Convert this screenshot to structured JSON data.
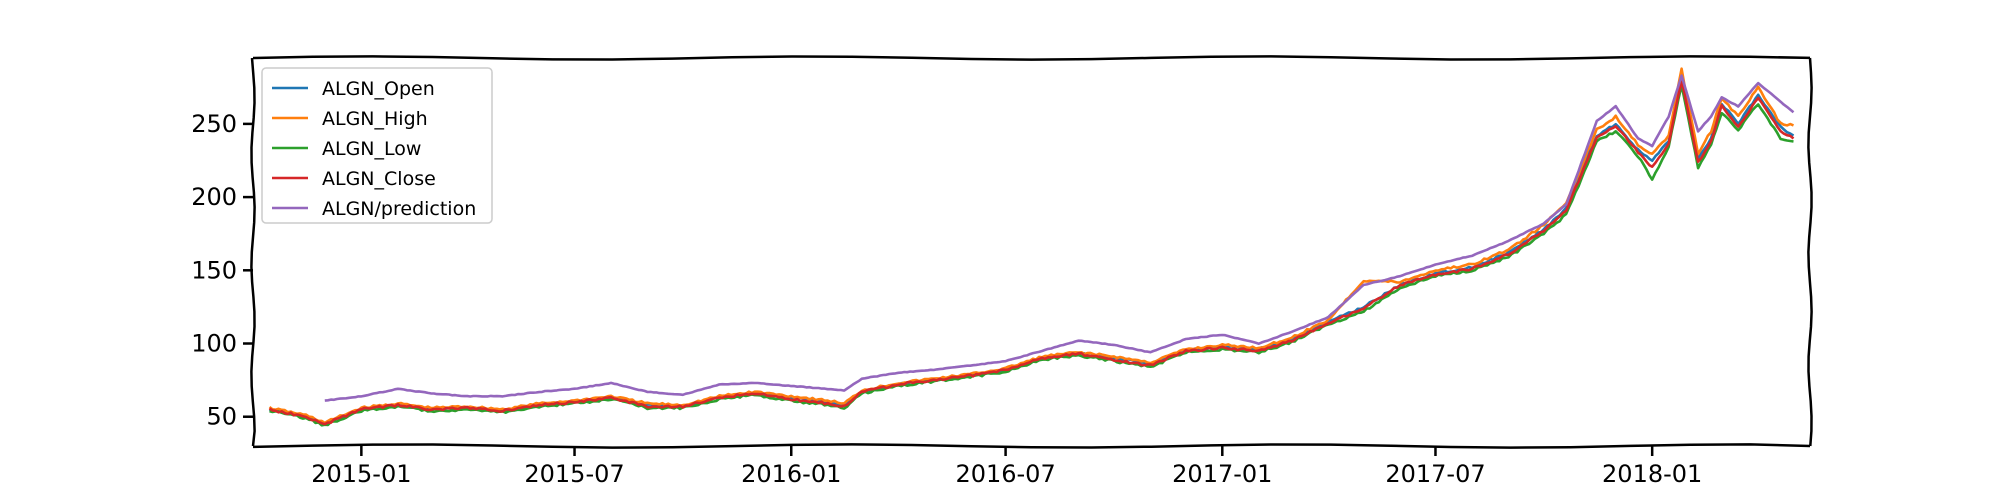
{
  "chart_data": {
    "type": "line",
    "title": "",
    "xlabel": "",
    "ylabel": "",
    "style": "hand-drawn (xkcd)",
    "grid": false,
    "legend": "top-left",
    "xlim": [
      "2014-10-01",
      "2018-05-15"
    ],
    "ylim": [
      30,
      295
    ],
    "x_ticks": [
      "2015-01",
      "2015-07",
      "2016-01",
      "2016-07",
      "2017-01",
      "2017-07",
      "2018-01"
    ],
    "y_ticks": [
      50,
      100,
      150,
      200,
      250
    ],
    "series": [
      {
        "name": "ALGN_Open",
        "color": "#1f77b4",
        "x": [
          "2014-10-15",
          "2014-11-15",
          "2014-12-01",
          "2015-01-01",
          "2015-02-01",
          "2015-03-01",
          "2015-04-01",
          "2015-05-01",
          "2015-06-01",
          "2015-07-01",
          "2015-08-01",
          "2015-09-01",
          "2015-10-01",
          "2015-11-01",
          "2015-12-01",
          "2016-01-01",
          "2016-02-01",
          "2016-02-15",
          "2016-03-01",
          "2016-04-01",
          "2016-05-01",
          "2016-06-01",
          "2016-07-01",
          "2016-08-01",
          "2016-09-01",
          "2016-10-01",
          "2016-11-01",
          "2016-12-01",
          "2017-01-01",
          "2017-02-01",
          "2017-03-01",
          "2017-04-01",
          "2017-05-01",
          "2017-06-01",
          "2017-07-01",
          "2017-08-01",
          "2017-09-01",
          "2017-10-01",
          "2017-10-20",
          "2017-11-15",
          "2017-12-01",
          "2017-12-20",
          "2018-01-01",
          "2018-01-15",
          "2018-01-26",
          "2018-02-09",
          "2018-02-20",
          "2018-03-01",
          "2018-03-15",
          "2018-04-01",
          "2018-04-20",
          "2018-05-01"
        ],
        "values": [
          55,
          50,
          45,
          55,
          58,
          55,
          56,
          54,
          58,
          60,
          63,
          58,
          57,
          63,
          66,
          63,
          60,
          58,
          67,
          72,
          75,
          78,
          82,
          90,
          93,
          90,
          86,
          95,
          98,
          96,
          103,
          115,
          125,
          140,
          148,
          152,
          162,
          178,
          192,
          242,
          250,
          232,
          225,
          238,
          282,
          226,
          240,
          264,
          250,
          270,
          248,
          242
        ]
      },
      {
        "name": "ALGN_High",
        "color": "#ff7f0e",
        "x": [
          "2014-10-15",
          "2014-11-15",
          "2014-12-01",
          "2015-01-01",
          "2015-02-01",
          "2015-03-01",
          "2015-04-01",
          "2015-05-01",
          "2015-06-01",
          "2015-07-01",
          "2015-08-01",
          "2015-09-01",
          "2015-10-01",
          "2015-11-01",
          "2015-12-01",
          "2016-01-01",
          "2016-02-01",
          "2016-02-15",
          "2016-03-01",
          "2016-04-01",
          "2016-05-01",
          "2016-06-01",
          "2016-07-01",
          "2016-08-01",
          "2016-09-01",
          "2016-10-01",
          "2016-11-01",
          "2016-12-01",
          "2017-01-01",
          "2017-02-01",
          "2017-03-01",
          "2017-04-01",
          "2017-05-01",
          "2017-06-01",
          "2017-07-01",
          "2017-08-01",
          "2017-09-01",
          "2017-10-01",
          "2017-10-20",
          "2017-11-15",
          "2017-12-01",
          "2017-12-20",
          "2018-01-01",
          "2018-01-15",
          "2018-01-26",
          "2018-02-09",
          "2018-02-20",
          "2018-03-01",
          "2018-03-15",
          "2018-04-01",
          "2018-04-20",
          "2018-05-01"
        ],
        "values": [
          56,
          51,
          46,
          56,
          59,
          56,
          57,
          55,
          59,
          61,
          64,
          59,
          58,
          64,
          67,
          64,
          61,
          59,
          68,
          73,
          76,
          79,
          83,
          91,
          94,
          91,
          87,
          96,
          99,
          97,
          104,
          116,
          143,
          142,
          150,
          154,
          164,
          181,
          196,
          246,
          255,
          236,
          229,
          242,
          287,
          230,
          245,
          268,
          255,
          275,
          250,
          249
        ]
      },
      {
        "name": "ALGN_Low",
        "color": "#2ca02c",
        "x": [
          "2014-10-15",
          "2014-11-15",
          "2014-12-01",
          "2015-01-01",
          "2015-02-01",
          "2015-03-01",
          "2015-04-01",
          "2015-05-01",
          "2015-06-01",
          "2015-07-01",
          "2015-08-01",
          "2015-09-01",
          "2015-10-01",
          "2015-11-01",
          "2015-12-01",
          "2016-01-01",
          "2016-02-01",
          "2016-02-15",
          "2016-03-01",
          "2016-04-01",
          "2016-05-01",
          "2016-06-01",
          "2016-07-01",
          "2016-08-01",
          "2016-09-01",
          "2016-10-01",
          "2016-11-01",
          "2016-12-01",
          "2017-01-01",
          "2017-02-01",
          "2017-03-01",
          "2017-04-01",
          "2017-05-01",
          "2017-06-01",
          "2017-07-01",
          "2017-08-01",
          "2017-09-01",
          "2017-10-01",
          "2017-10-20",
          "2017-11-15",
          "2017-12-01",
          "2017-12-20",
          "2018-01-01",
          "2018-01-15",
          "2018-01-26",
          "2018-02-09",
          "2018-02-20",
          "2018-03-01",
          "2018-03-15",
          "2018-04-01",
          "2018-04-20",
          "2018-05-01"
        ],
        "values": [
          54,
          49,
          44,
          54,
          57,
          54,
          55,
          53,
          57,
          59,
          62,
          56,
          56,
          62,
          65,
          61,
          58,
          56,
          66,
          71,
          74,
          77,
          81,
          89,
          92,
          88,
          84,
          94,
          96,
          94,
          101,
          113,
          122,
          138,
          146,
          150,
          159,
          175,
          188,
          238,
          245,
          228,
          212,
          234,
          277,
          220,
          236,
          258,
          246,
          264,
          240,
          238
        ]
      },
      {
        "name": "ALGN_Close",
        "color": "#d62728",
        "x": [
          "2014-10-15",
          "2014-11-15",
          "2014-12-01",
          "2015-01-01",
          "2015-02-01",
          "2015-03-01",
          "2015-04-01",
          "2015-05-01",
          "2015-06-01",
          "2015-07-01",
          "2015-08-01",
          "2015-09-01",
          "2015-10-01",
          "2015-11-01",
          "2015-12-01",
          "2016-01-01",
          "2016-02-01",
          "2016-02-15",
          "2016-03-01",
          "2016-04-01",
          "2016-05-01",
          "2016-06-01",
          "2016-07-01",
          "2016-08-01",
          "2016-09-01",
          "2016-10-01",
          "2016-11-01",
          "2016-12-01",
          "2017-01-01",
          "2017-02-01",
          "2017-03-01",
          "2017-04-01",
          "2017-05-01",
          "2017-06-01",
          "2017-07-01",
          "2017-08-01",
          "2017-09-01",
          "2017-10-01",
          "2017-10-20",
          "2017-11-15",
          "2017-12-01",
          "2017-12-20",
          "2018-01-01",
          "2018-01-15",
          "2018-01-26",
          "2018-02-09",
          "2018-02-20",
          "2018-03-01",
          "2018-03-15",
          "2018-04-01",
          "2018-04-20",
          "2018-05-01"
        ],
        "values": [
          55,
          50,
          45,
          55,
          58,
          55,
          56,
          54,
          58,
          60,
          63,
          57,
          57,
          63,
          66,
          62,
          59,
          57,
          67,
          72,
          75,
          78,
          82,
          90,
          93,
          89,
          85,
          95,
          97,
          95,
          102,
          114,
          124,
          140,
          147,
          151,
          161,
          177,
          191,
          241,
          249,
          231,
          220,
          236,
          280,
          224,
          238,
          262,
          248,
          268,
          245,
          240
        ]
      },
      {
        "name": "ALGN/prediction",
        "color": "#9467bd",
        "x": [
          "2014-12-01",
          "2015-01-01",
          "2015-02-01",
          "2015-03-01",
          "2015-04-01",
          "2015-05-01",
          "2015-06-01",
          "2015-07-01",
          "2015-08-01",
          "2015-09-01",
          "2015-10-01",
          "2015-11-01",
          "2015-12-01",
          "2016-01-01",
          "2016-02-01",
          "2016-02-15",
          "2016-03-01",
          "2016-04-01",
          "2016-05-01",
          "2016-06-01",
          "2016-07-01",
          "2016-08-01",
          "2016-09-01",
          "2016-10-01",
          "2016-11-01",
          "2016-12-01",
          "2017-01-01",
          "2017-02-01",
          "2017-03-01",
          "2017-04-01",
          "2017-05-01",
          "2017-06-01",
          "2017-07-01",
          "2017-08-01",
          "2017-09-01",
          "2017-10-01",
          "2017-10-20",
          "2017-11-15",
          "2017-12-01",
          "2017-12-20",
          "2018-01-01",
          "2018-01-15",
          "2018-01-26",
          "2018-02-09",
          "2018-02-20",
          "2018-03-01",
          "2018-03-15",
          "2018-04-01",
          "2018-04-20",
          "2018-05-01"
        ],
        "values": [
          61,
          64,
          69,
          66,
          64,
          64,
          67,
          69,
          73,
          67,
          65,
          72,
          73,
          71,
          69,
          68,
          76,
          80,
          82,
          85,
          88,
          95,
          102,
          99,
          94,
          103,
          106,
          100,
          108,
          118,
          140,
          146,
          154,
          160,
          170,
          182,
          195,
          252,
          262,
          240,
          235,
          255,
          283,
          245,
          255,
          268,
          262,
          278,
          265,
          258
        ]
      }
    ]
  }
}
